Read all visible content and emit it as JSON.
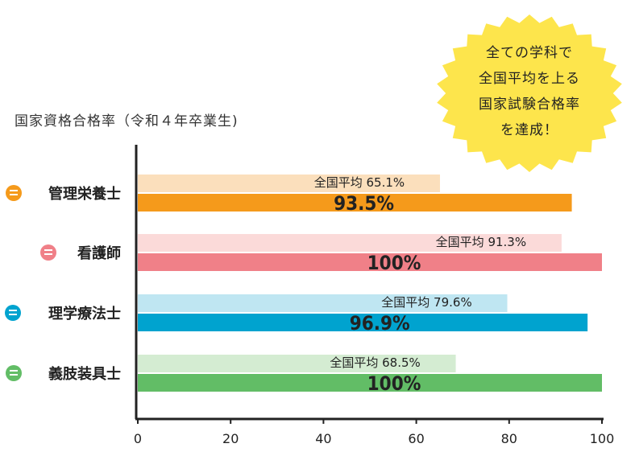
{
  "chart_data": {
    "type": "bar",
    "orientation": "horizontal",
    "title": "国家資格合格率（令和４年卒業生)",
    "categories": [
      "管理栄養士",
      "看護師",
      "理学療法士",
      "義肢装具士"
    ],
    "series": [
      {
        "name": "全国平均",
        "values": [
          65.1,
          91.3,
          79.6,
          68.5
        ],
        "labels": [
          "全国平均 65.1%",
          "全国平均 91.3%",
          "全国平均 79.6%",
          "全国平均 68.5%"
        ]
      },
      {
        "values": [
          93.5,
          100,
          96.9,
          100
        ],
        "labels": [
          "93.5%",
          "100%",
          "96.9%",
          "100%"
        ]
      }
    ],
    "xlim": [
      0,
      100
    ],
    "xticks": [
      0,
      20,
      40,
      60,
      80,
      100
    ],
    "xtick_labels": [
      "0",
      "20",
      "40",
      "60",
      "80",
      "100"
    ],
    "grid": false
  },
  "colors": {
    "main": [
      "#f59a1b",
      "#f08088",
      "#00a3cf",
      "#62bd66"
    ],
    "avg": [
      "#fbdfbc",
      "#fbdad9",
      "#bfe6f2",
      "#d4ecd2"
    ],
    "axis": "#222222",
    "badge": "#fde54c"
  },
  "category_icons": [
    "fork-knife-icon",
    "stethoscope-icon",
    "wheelchair-icon",
    "prosthetic-icon"
  ],
  "badge": {
    "lines": [
      "全ての学科で",
      "全国平均を上る",
      "国家試験合格率",
      "を達成！"
    ]
  }
}
